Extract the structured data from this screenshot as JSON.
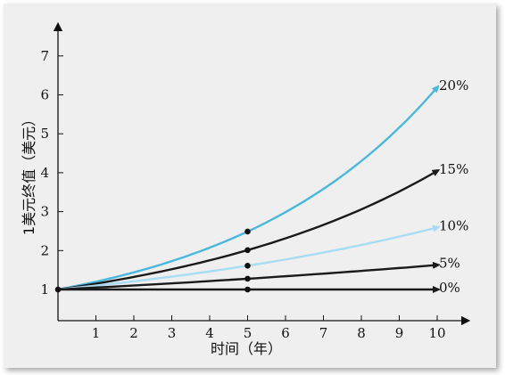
{
  "chart_data": {
    "type": "line",
    "title": "",
    "xlabel": "时间（年）",
    "ylabel": "1美元终值（美元）",
    "xlim": [
      0,
      10
    ],
    "ylim": [
      0.8,
      7.7
    ],
    "xticks": [
      1,
      2,
      3,
      4,
      5,
      6,
      7,
      8,
      9,
      10
    ],
    "yticks": [
      1,
      2,
      3,
      4,
      5,
      6,
      7
    ],
    "grid": false,
    "legend": "none",
    "x": [
      0,
      1,
      2,
      3,
      4,
      5,
      6,
      7,
      8,
      9,
      10
    ],
    "series": [
      {
        "name": "20%",
        "color": "#4ab8dc",
        "rate": 0.2,
        "values": [
          1,
          1.2,
          1.44,
          1.728,
          2.074,
          2.488,
          2.986,
          3.583,
          4.3,
          5.16,
          6.192
        ]
      },
      {
        "name": "15%",
        "color": "#1a1a1a",
        "rate": 0.15,
        "values": [
          1,
          1.15,
          1.323,
          1.521,
          1.749,
          2.011,
          2.313,
          2.66,
          3.059,
          3.518,
          4.046
        ]
      },
      {
        "name": "10%",
        "color": "#a8dcf4",
        "rate": 0.1,
        "values": [
          1,
          1.1,
          1.21,
          1.331,
          1.464,
          1.611,
          1.772,
          1.949,
          2.144,
          2.358,
          2.594
        ]
      },
      {
        "name": "5%",
        "color": "#1a1a1a",
        "rate": 0.05,
        "values": [
          1,
          1.05,
          1.103,
          1.158,
          1.216,
          1.276,
          1.34,
          1.407,
          1.477,
          1.551,
          1.629
        ]
      },
      {
        "name": "0%",
        "color": "#1a1a1a",
        "rate": 0.0,
        "values": [
          1,
          1,
          1,
          1,
          1,
          1,
          1,
          1,
          1,
          1,
          1
        ]
      }
    ],
    "markers": [
      {
        "x": 0,
        "y": 1
      },
      {
        "x": 5,
        "y": 1
      },
      {
        "x": 5,
        "y": 1.276
      },
      {
        "x": 5,
        "y": 1.611
      },
      {
        "x": 5,
        "y": 2.011
      },
      {
        "x": 5,
        "y": 2.488
      }
    ]
  }
}
